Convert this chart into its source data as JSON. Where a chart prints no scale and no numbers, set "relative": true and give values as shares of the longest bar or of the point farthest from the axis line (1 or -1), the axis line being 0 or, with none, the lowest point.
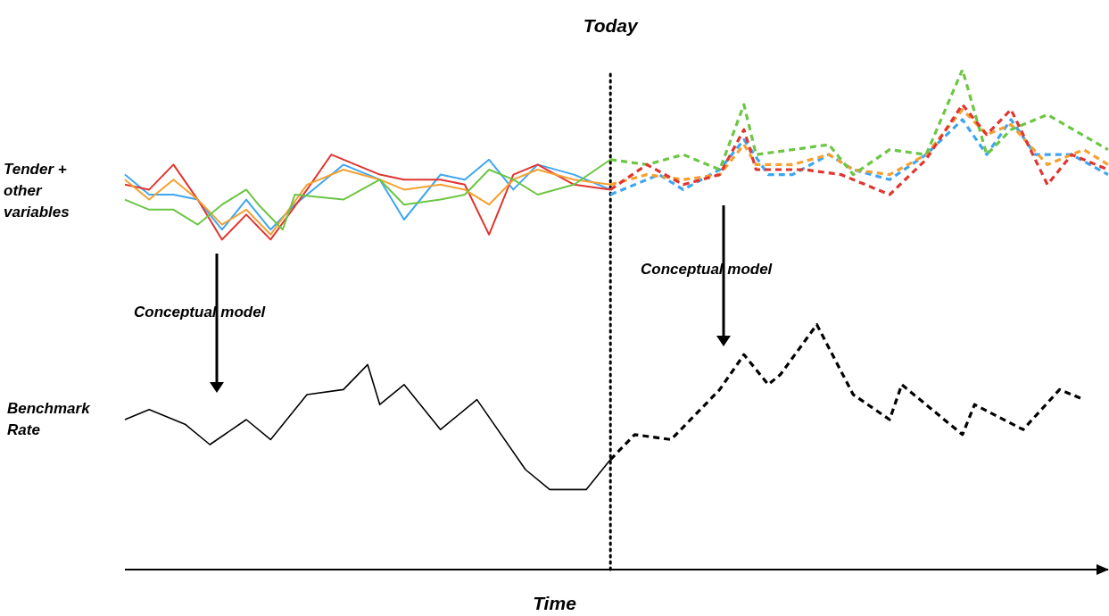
{
  "chart_data": {
    "type": "line",
    "relative": true,
    "xlabel": "Time",
    "categories": [
      null,
      null,
      null,
      null,
      null,
      null,
      null,
      null,
      null,
      null,
      null,
      null,
      null,
      null,
      null,
      null,
      null,
      null,
      null,
      null,
      null,
      null,
      null,
      null,
      null,
      null,
      null,
      null,
      null,
      null,
      null,
      null,
      null,
      null,
      null,
      null,
      null,
      null,
      null,
      null,
      null,
      null,
      null,
      null,
      null,
      null,
      null,
      null,
      null,
      null,
      null,
      null,
      null,
      null,
      null,
      null,
      null,
      null,
      null,
      null,
      null,
      null,
      null,
      null,
      null,
      null,
      null,
      null,
      null,
      null,
      null,
      null,
      null,
      null,
      null,
      null,
      null,
      null,
      null,
      null,
      null,
      null
    ],
    "series": [
      {
        "color": "#3ea6f0",
        "line_style": "solid",
        "values": [
          0.79,
          null,
          0.75,
          null,
          0.75,
          null,
          0.74,
          null,
          0.68,
          null,
          0.74,
          null,
          0.68,
          null,
          0.73,
          null,
          null,
          null,
          0.81,
          null,
          null,
          0.78,
          null,
          0.7,
          null,
          null,
          0.79,
          null,
          0.78,
          null,
          0.82,
          null,
          0.76,
          null,
          0.81,
          null,
          null,
          0.79,
          null,
          null,
          0.76,
          null,
          null,
          null,
          null,
          null,
          null,
          null,
          null,
          null,
          null,
          null,
          null,
          null,
          null,
          null,
          null,
          null,
          null,
          null,
          null,
          null,
          null,
          null,
          null,
          null,
          null,
          null,
          null,
          null,
          null,
          null,
          null,
          null,
          null,
          null,
          null,
          null,
          null,
          null,
          null,
          null
        ]
      },
      {
        "color": "#e03530",
        "line_style": "solid",
        "values": [
          0.77,
          null,
          0.76,
          null,
          0.81,
          null,
          0.74,
          null,
          0.66,
          null,
          0.71,
          null,
          0.66,
          null,
          null,
          0.76,
          null,
          0.83,
          null,
          null,
          null,
          0.79,
          null,
          0.78,
          null,
          null,
          0.78,
          null,
          0.77,
          null,
          0.67,
          null,
          0.79,
          null,
          0.81,
          null,
          null,
          0.77,
          null,
          null,
          0.76,
          null,
          null,
          null,
          null,
          null,
          null,
          null,
          null,
          null,
          null,
          null,
          null,
          null,
          null,
          null,
          null,
          null,
          null,
          null,
          null,
          null,
          null,
          null,
          null,
          null,
          null,
          null,
          null,
          null,
          null,
          null,
          null,
          null,
          null,
          null,
          null,
          null,
          null,
          null,
          null,
          null
        ]
      },
      {
        "color": "#f5a030",
        "line_style": "solid",
        "values": [
          0.78,
          null,
          0.74,
          null,
          0.78,
          null,
          0.74,
          null,
          0.69,
          null,
          0.72,
          null,
          0.67,
          null,
          null,
          0.77,
          null,
          null,
          0.8,
          null,
          null,
          0.78,
          null,
          0.76,
          null,
          null,
          0.77,
          null,
          0.76,
          null,
          0.73,
          null,
          0.78,
          null,
          0.8,
          null,
          null,
          0.78,
          null,
          null,
          0.77,
          null,
          null,
          null,
          null,
          null,
          null,
          null,
          null,
          null,
          null,
          null,
          null,
          null,
          null,
          null,
          null,
          null,
          null,
          null,
          null,
          null,
          null,
          null,
          null,
          null,
          null,
          null,
          null,
          null,
          null,
          null,
          null,
          null,
          null,
          null,
          null,
          null,
          null,
          null,
          null,
          null
        ]
      },
      {
        "color": "#6cc644",
        "line_style": "solid",
        "values": [
          0.74,
          null,
          0.72,
          null,
          0.72,
          null,
          0.69,
          null,
          0.73,
          null,
          0.76,
          0.73,
          null,
          0.68,
          0.75,
          null,
          null,
          null,
          0.74,
          null,
          null,
          0.78,
          null,
          0.73,
          null,
          null,
          0.74,
          null,
          0.75,
          null,
          0.8,
          null,
          0.78,
          null,
          0.75,
          null,
          null,
          0.77,
          null,
          null,
          0.82,
          null,
          null,
          null,
          null,
          null,
          null,
          null,
          null,
          null,
          null,
          null,
          null,
          null,
          null,
          null,
          null,
          null,
          null,
          null,
          null,
          null,
          null,
          null,
          null,
          null,
          null,
          null,
          null,
          null,
          null,
          null,
          null,
          null,
          null,
          null,
          null,
          null,
          null,
          null,
          null,
          null
        ]
      },
      {
        "color": "#3ea6f0",
        "line_style": "dashed",
        "values": [
          null,
          null,
          null,
          null,
          null,
          null,
          null,
          null,
          null,
          null,
          null,
          null,
          null,
          null,
          null,
          null,
          null,
          null,
          null,
          null,
          null,
          null,
          null,
          null,
          null,
          null,
          null,
          null,
          null,
          null,
          null,
          null,
          null,
          null,
          null,
          null,
          null,
          null,
          null,
          null,
          0.75,
          null,
          null,
          null,
          0.79,
          null,
          0.76,
          null,
          null,
          0.8,
          null,
          0.86,
          null,
          0.79,
          null,
          0.79,
          null,
          null,
          0.83,
          null,
          0.8,
          null,
          null,
          0.78,
          null,
          null,
          0.83,
          null,
          null,
          0.9,
          null,
          0.83,
          null,
          0.9,
          null,
          0.83,
          null,
          null,
          0.83,
          null,
          null,
          0.79
        ]
      },
      {
        "color": "#f5a030",
        "line_style": "dashed",
        "values": [
          null,
          null,
          null,
          null,
          null,
          null,
          null,
          null,
          null,
          null,
          null,
          null,
          null,
          null,
          null,
          null,
          null,
          null,
          null,
          null,
          null,
          null,
          null,
          null,
          null,
          null,
          null,
          null,
          null,
          null,
          null,
          null,
          null,
          null,
          null,
          null,
          null,
          null,
          null,
          null,
          0.77,
          null,
          null,
          0.79,
          null,
          null,
          0.78,
          null,
          null,
          0.79,
          null,
          0.85,
          0.81,
          null,
          null,
          0.81,
          null,
          null,
          0.83,
          null,
          0.8,
          null,
          null,
          0.79,
          null,
          null,
          0.83,
          null,
          null,
          0.92,
          null,
          0.87,
          null,
          0.89,
          null,
          null,
          0.81,
          null,
          null,
          0.84,
          null,
          0.81
        ]
      },
      {
        "color": "#6cc644",
        "line_style": "dashed",
        "values": [
          null,
          null,
          null,
          null,
          null,
          null,
          null,
          null,
          null,
          null,
          null,
          null,
          null,
          null,
          null,
          null,
          null,
          null,
          null,
          null,
          null,
          null,
          null,
          null,
          null,
          null,
          null,
          null,
          null,
          null,
          null,
          null,
          null,
          null,
          null,
          null,
          null,
          null,
          null,
          null,
          0.82,
          null,
          null,
          0.81,
          null,
          null,
          0.83,
          null,
          null,
          0.8,
          null,
          0.93,
          0.83,
          null,
          null,
          null,
          null,
          null,
          0.85,
          null,
          0.79,
          null,
          null,
          0.84,
          null,
          null,
          0.83,
          null,
          null,
          1,
          null,
          0.83,
          null,
          0.88,
          null,
          null,
          0.91,
          null,
          null,
          null,
          null,
          0.84
        ]
      },
      {
        "color": "#e03530",
        "line_style": "dashed",
        "values": [
          null,
          null,
          null,
          null,
          null,
          null,
          null,
          null,
          null,
          null,
          null,
          null,
          null,
          null,
          null,
          null,
          null,
          null,
          null,
          null,
          null,
          null,
          null,
          null,
          null,
          null,
          null,
          null,
          null,
          null,
          null,
          null,
          null,
          null,
          null,
          null,
          null,
          null,
          null,
          null,
          0.76,
          null,
          null,
          0.81,
          null,
          null,
          0.77,
          null,
          null,
          0.79,
          null,
          0.88,
          0.8,
          null,
          null,
          null,
          0.8,
          null,
          null,
          0.79,
          null,
          null,
          null,
          0.75,
          null,
          null,
          0.82,
          null,
          null,
          0.93,
          null,
          0.87,
          null,
          0.92,
          null,
          null,
          0.77,
          null,
          0.83,
          null,
          null,
          0.8
        ]
      },
      {
        "color": "#000000",
        "line_style": "solid",
        "values": [
          0.3,
          null,
          0.32,
          null,
          null,
          0.29,
          null,
          0.25,
          null,
          null,
          0.3,
          null,
          0.26,
          null,
          null,
          0.35,
          null,
          null,
          0.36,
          null,
          0.41,
          0.33,
          null,
          0.37,
          null,
          null,
          0.28,
          null,
          null,
          0.34,
          null,
          null,
          null,
          0.2,
          null,
          0.16,
          null,
          null,
          0.16,
          null,
          0.22,
          null,
          null,
          null,
          null,
          null,
          null,
          null,
          null,
          null,
          null,
          null,
          null,
          null,
          null,
          null,
          null,
          null,
          null,
          null,
          null,
          null,
          null,
          null,
          null,
          null,
          null,
          null,
          null,
          null,
          null,
          null,
          null,
          null,
          null,
          null,
          null,
          null,
          null,
          null,
          null,
          null
        ]
      },
      {
        "color": "#000000",
        "line_style": "dashed",
        "values": [
          null,
          null,
          null,
          null,
          null,
          null,
          null,
          null,
          null,
          null,
          null,
          null,
          null,
          null,
          null,
          null,
          null,
          null,
          null,
          null,
          null,
          null,
          null,
          null,
          null,
          null,
          null,
          null,
          null,
          null,
          null,
          null,
          null,
          null,
          null,
          null,
          null,
          null,
          null,
          null,
          0.22,
          null,
          0.27,
          null,
          null,
          0.26,
          null,
          null,
          null,
          0.36,
          null,
          0.43,
          null,
          0.37,
          0.39,
          null,
          null,
          0.49,
          null,
          null,
          0.35,
          null,
          null,
          0.3,
          0.37,
          null,
          null,
          null,
          null,
          0.27,
          0.33,
          null,
          null,
          null,
          0.28,
          null,
          null,
          0.36,
          null,
          0.34,
          null,
          null
        ]
      }
    ],
    "annotations": [
      "Today",
      "Tender + other variables",
      "Benchmark Rate",
      "Conceptual model",
      "Conceptual model"
    ]
  }
}
